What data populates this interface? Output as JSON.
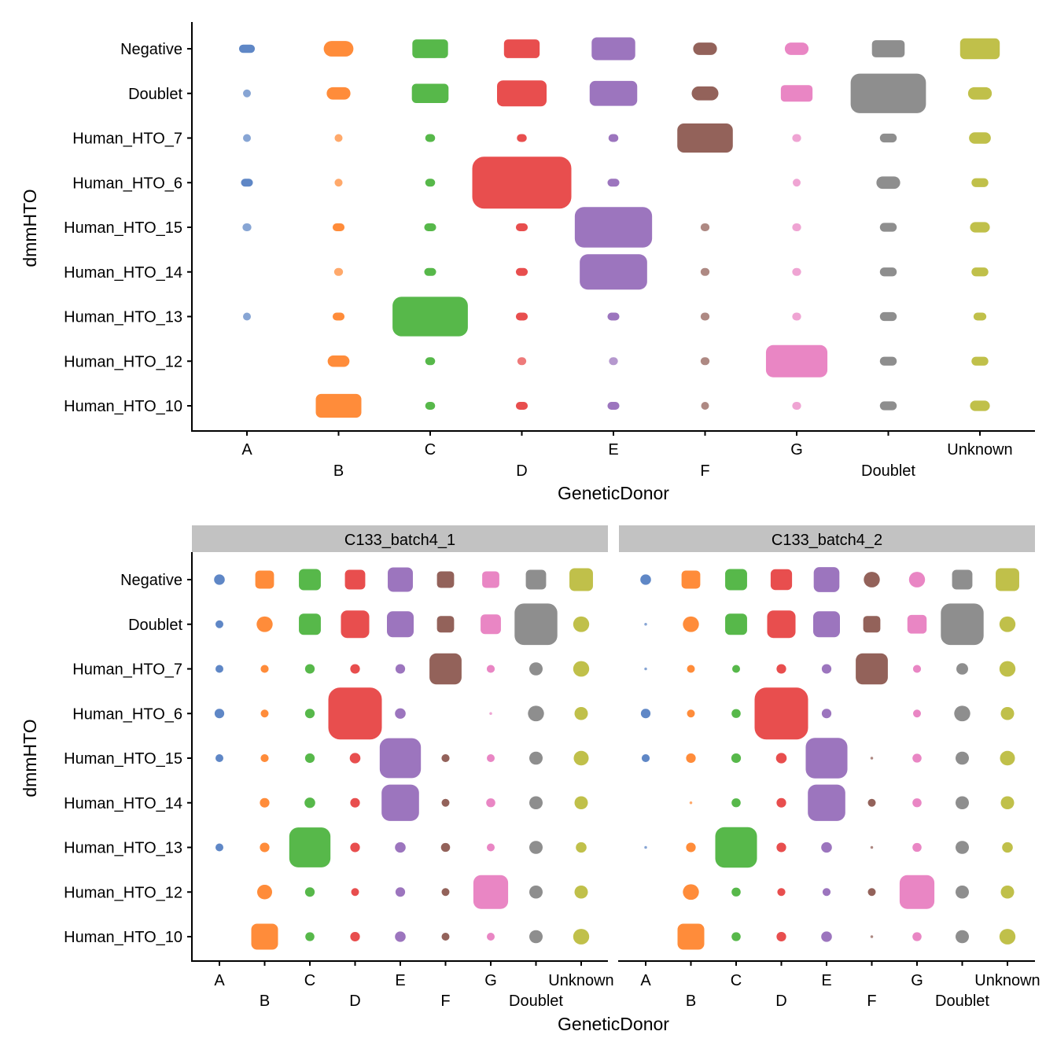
{
  "colors": {
    "A": "#5F87C6",
    "B": "#FF8C3A",
    "C": "#57B84A",
    "D": "#E84E4E",
    "E": "#9C75BE",
    "F": "#93625A",
    "G": "#E986C4",
    "Doublet": "#8E8E8E",
    "Unknown": "#C0C04A",
    "strip_bg": "#C2C2C2"
  },
  "chart_data": [
    {
      "type": "scatter",
      "description_of_marks": "jittered points per cell; blob size shows relative count (0-1, relative to largest cell)",
      "xlabel": "GeneticDonor",
      "ylabel": "dmmHTO",
      "x_categories": [
        "A",
        "B",
        "C",
        "D",
        "E",
        "F",
        "G",
        "Doublet",
        "Unknown"
      ],
      "y_categories": [
        "Negative",
        "Doublet",
        "Human_HTO_7",
        "Human_HTO_6",
        "Human_HTO_15",
        "Human_HTO_14",
        "Human_HTO_13",
        "Human_HTO_12",
        "Human_HTO_10"
      ],
      "relative_size": [
        [
          0.16,
          0.3,
          0.36,
          0.36,
          0.44,
          0.24,
          0.24,
          0.33,
          0.4
        ],
        [
          0.06,
          0.24,
          0.37,
          0.5,
          0.48,
          0.27,
          0.32,
          0.76,
          0.24
        ],
        [
          0.06,
          0.08,
          0.1,
          0.1,
          0.1,
          0.56,
          0.09,
          0.17,
          0.22
        ],
        [
          0.12,
          0.08,
          0.1,
          1.0,
          0.12,
          0,
          0.06,
          0.24,
          0.17
        ],
        [
          0.09,
          0.12,
          0.12,
          0.12,
          0.78,
          0.09,
          0.09,
          0.17,
          0.2
        ],
        [
          0,
          0.09,
          0.12,
          0.12,
          0.68,
          0.09,
          0.09,
          0.17,
          0.17
        ],
        [
          0.06,
          0.12,
          0.76,
          0.12,
          0.12,
          0.09,
          0.09,
          0.17,
          0.13
        ],
        [
          0,
          0.22,
          0.1,
          0.09,
          0.09,
          0.09,
          0.62,
          0.17,
          0.17
        ],
        [
          0,
          0.46,
          0.1,
          0.12,
          0.12,
          0.06,
          0.09,
          0.17,
          0.2
        ]
      ]
    },
    {
      "type": "scatter",
      "facet": "C133_batch4_1",
      "xlabel": "GeneticDonor",
      "ylabel": "dmmHTO",
      "x_categories": [
        "A",
        "B",
        "C",
        "D",
        "E",
        "F",
        "G",
        "Doublet",
        "Unknown"
      ],
      "y_categories": [
        "Negative",
        "Doublet",
        "Human_HTO_7",
        "Human_HTO_6",
        "Human_HTO_15",
        "Human_HTO_14",
        "Human_HTO_13",
        "Human_HTO_12",
        "Human_HTO_10"
      ],
      "relative_size": [
        [
          0.2,
          0.35,
          0.41,
          0.38,
          0.47,
          0.32,
          0.32,
          0.38,
          0.44
        ],
        [
          0.12,
          0.3,
          0.41,
          0.53,
          0.5,
          0.32,
          0.38,
          0.8,
          0.3
        ],
        [
          0.12,
          0.15,
          0.18,
          0.18,
          0.18,
          0.6,
          0.15,
          0.25,
          0.3
        ],
        [
          0.18,
          0.12,
          0.18,
          1.0,
          0.2,
          0,
          0.04,
          0.3,
          0.25
        ],
        [
          0.12,
          0.15,
          0.18,
          0.2,
          0.77,
          0.15,
          0.12,
          0.25,
          0.28
        ],
        [
          0,
          0.18,
          0.2,
          0.18,
          0.7,
          0.12,
          0.17,
          0.25,
          0.25
        ],
        [
          0.12,
          0.18,
          0.77,
          0.18,
          0.2,
          0.17,
          0.12,
          0.25,
          0.2
        ],
        [
          0,
          0.28,
          0.18,
          0.12,
          0.18,
          0.12,
          0.65,
          0.25,
          0.25
        ],
        [
          0,
          0.5,
          0.17,
          0.18,
          0.2,
          0.12,
          0.12,
          0.25,
          0.3
        ]
      ]
    },
    {
      "type": "scatter",
      "facet": "C133_batch4_2",
      "xlabel": "GeneticDonor",
      "ylabel": "dmmHTO",
      "x_categories": [
        "A",
        "B",
        "C",
        "D",
        "E",
        "F",
        "G",
        "Doublet",
        "Unknown"
      ],
      "y_categories": [
        "Negative",
        "Doublet",
        "Human_HTO_7",
        "Human_HTO_6",
        "Human_HTO_15",
        "Human_HTO_14",
        "Human_HTO_13",
        "Human_HTO_12",
        "Human_HTO_10"
      ],
      "relative_size": [
        [
          0.2,
          0.35,
          0.41,
          0.4,
          0.48,
          0.3,
          0.3,
          0.38,
          0.44
        ],
        [
          0.04,
          0.3,
          0.41,
          0.53,
          0.5,
          0.32,
          0.36,
          0.8,
          0.3
        ],
        [
          0.04,
          0.14,
          0.14,
          0.18,
          0.18,
          0.6,
          0.15,
          0.22,
          0.3
        ],
        [
          0.18,
          0.14,
          0.17,
          1.0,
          0.18,
          0,
          0.12,
          0.3,
          0.25
        ],
        [
          0.15,
          0.18,
          0.18,
          0.2,
          0.78,
          0.04,
          0.17,
          0.25,
          0.28
        ],
        [
          0,
          0.04,
          0.17,
          0.18,
          0.7,
          0.14,
          0.17,
          0.25,
          0.25
        ],
        [
          0.04,
          0.18,
          0.78,
          0.18,
          0.2,
          0.04,
          0.17,
          0.25,
          0.2
        ],
        [
          0,
          0.3,
          0.17,
          0.15,
          0.15,
          0.14,
          0.65,
          0.25,
          0.25
        ],
        [
          0,
          0.5,
          0.17,
          0.18,
          0.2,
          0.04,
          0.17,
          0.25,
          0.3
        ]
      ]
    }
  ]
}
